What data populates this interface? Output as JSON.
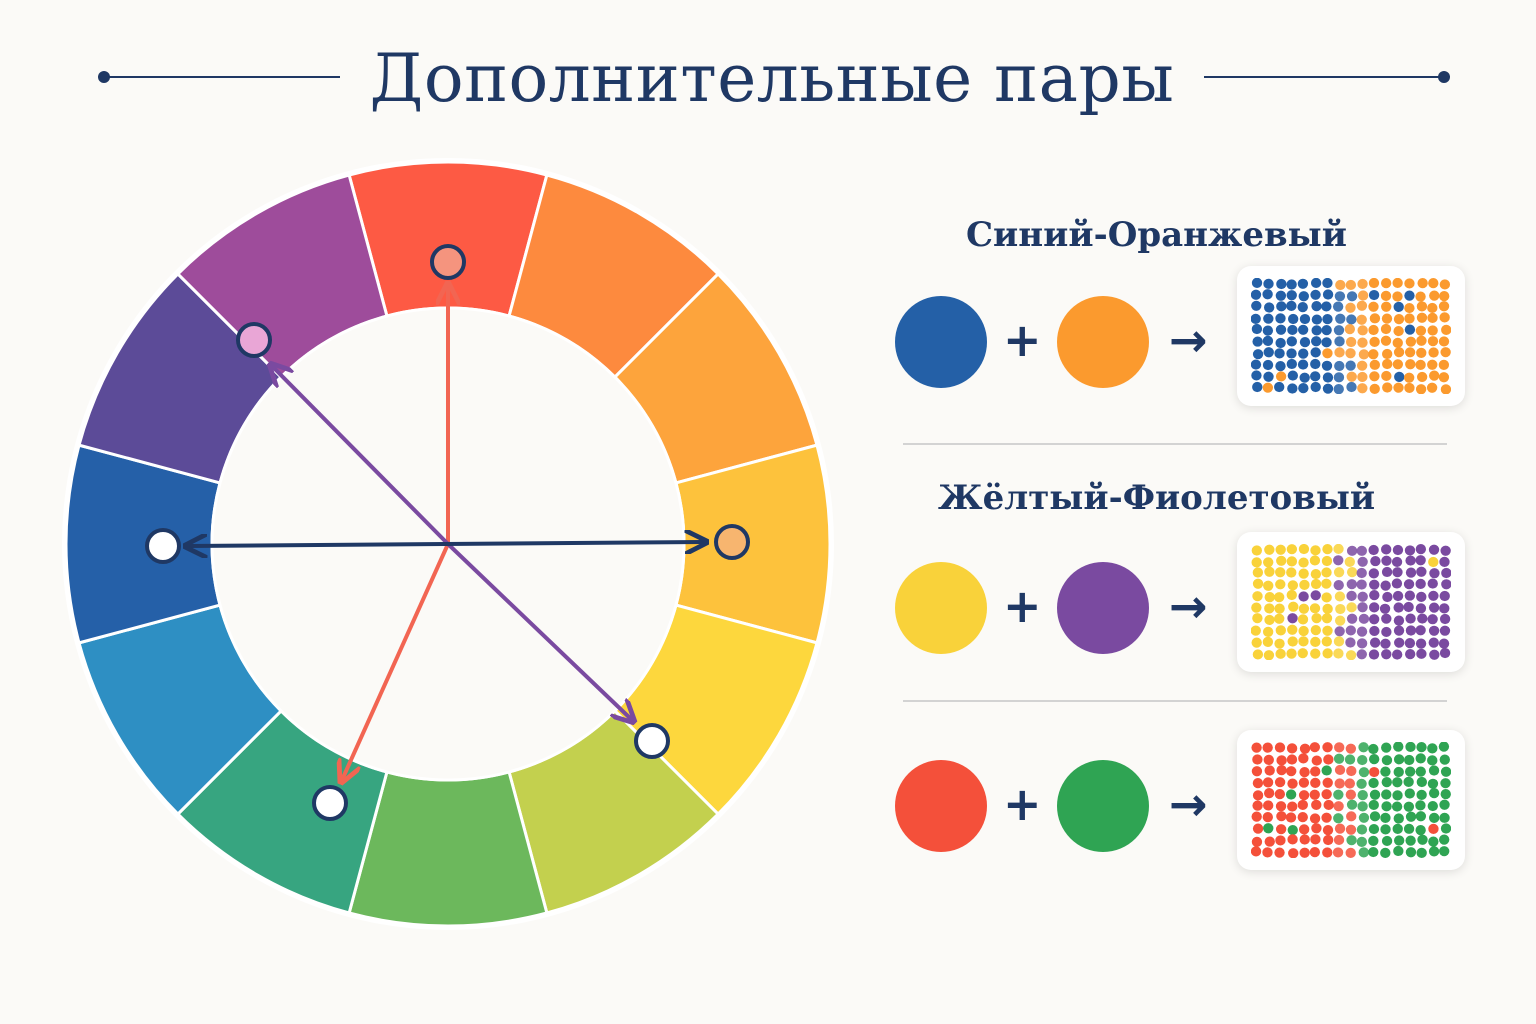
{
  "title": "Дополнительные пары",
  "colors": {
    "navy": "#1f3864",
    "blue": "#2460a7",
    "orange": "#f99a2e",
    "yellow": "#f8d23c",
    "violet": "#7a4aa0",
    "red": "#f4503a",
    "green": "#2fa453"
  },
  "wheel": {
    "segments": [
      {
        "color": "#fd5a44"
      },
      {
        "color": "#fd8a3e"
      },
      {
        "color": "#fda43c"
      },
      {
        "color": "#fdc23c"
      },
      {
        "color": "#fdd73d"
      },
      {
        "color": "#c3d04e"
      },
      {
        "color": "#6cb85c"
      },
      {
        "color": "#37a580"
      },
      {
        "color": "#2e8fc3"
      },
      {
        "color": "#2560a8"
      },
      {
        "color": "#5c4b98"
      },
      {
        "color": "#9e4c9b"
      }
    ],
    "arrows": [
      {
        "name": "red-green-arrow",
        "color": "#f26552"
      },
      {
        "name": "violet-yellow-arrow",
        "color": "#7a4aa0"
      },
      {
        "name": "blue-orange-arrow",
        "color": "#1f3864"
      }
    ]
  },
  "pairs": [
    {
      "title": "Синий-Оранжевый",
      "color_a": "#2460a7",
      "color_b": "#fb9a2e",
      "plus": "+",
      "arrow": "→"
    },
    {
      "title": "Жёлтый-Фиолетовый",
      "color_a": "#f9d23a",
      "color_b": "#7a4aa0",
      "plus": "+",
      "arrow": "→"
    },
    {
      "title": "",
      "color_a": "#f4503a",
      "color_b": "#2fa453",
      "plus": "+",
      "arrow": "→"
    }
  ]
}
